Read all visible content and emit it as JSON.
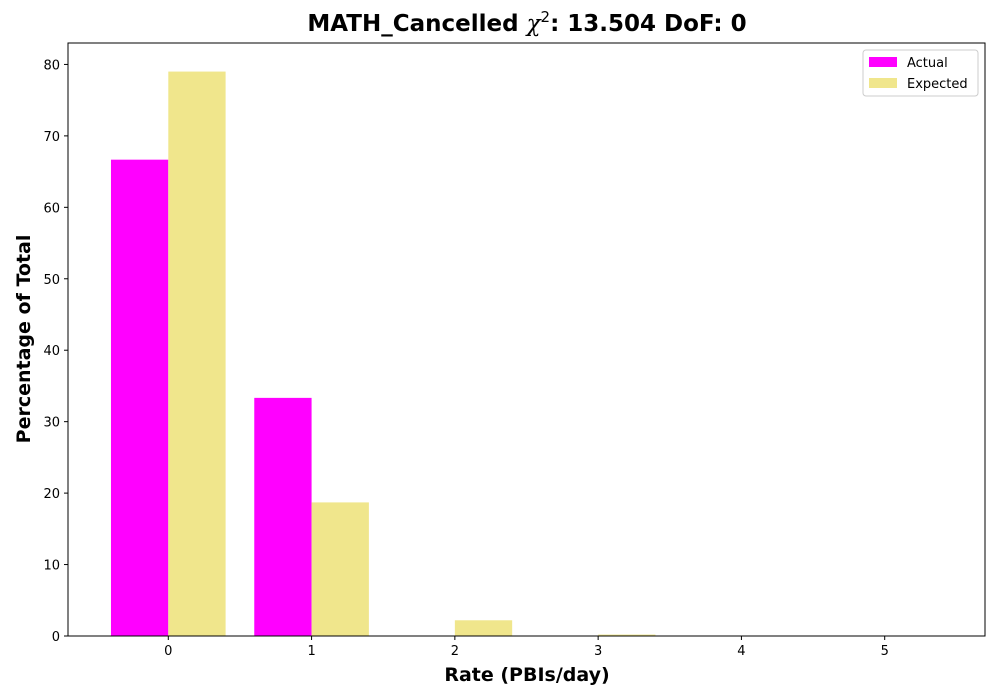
{
  "chart_data": {
    "type": "bar",
    "title_main": "MATH_Cancelled ",
    "title_chi": "χ",
    "title_chi_sup": "2",
    "title_rest": ": 13.504 DoF: 0",
    "xlabel": "Rate (PBIs/day)",
    "ylabel": "Percentage of Total",
    "categories": [
      "0",
      "1",
      "2",
      "3",
      "4",
      "5"
    ],
    "x": [
      0,
      1,
      2,
      3,
      4,
      5
    ],
    "xlim": [
      -0.7,
      5.7
    ],
    "ylim": [
      0,
      83
    ],
    "yticks": [
      0,
      10,
      20,
      30,
      40,
      50,
      60,
      70,
      80
    ],
    "grid": false,
    "legend_position": "top-right",
    "series": [
      {
        "name": "Actual",
        "color": "#ff00ff",
        "values": [
          66.67,
          33.33,
          0,
          0,
          0,
          0
        ]
      },
      {
        "name": "Expected",
        "color": "#f0e68c",
        "values": [
          79.0,
          18.7,
          2.2,
          0.2,
          0.0,
          0.0
        ]
      }
    ]
  }
}
